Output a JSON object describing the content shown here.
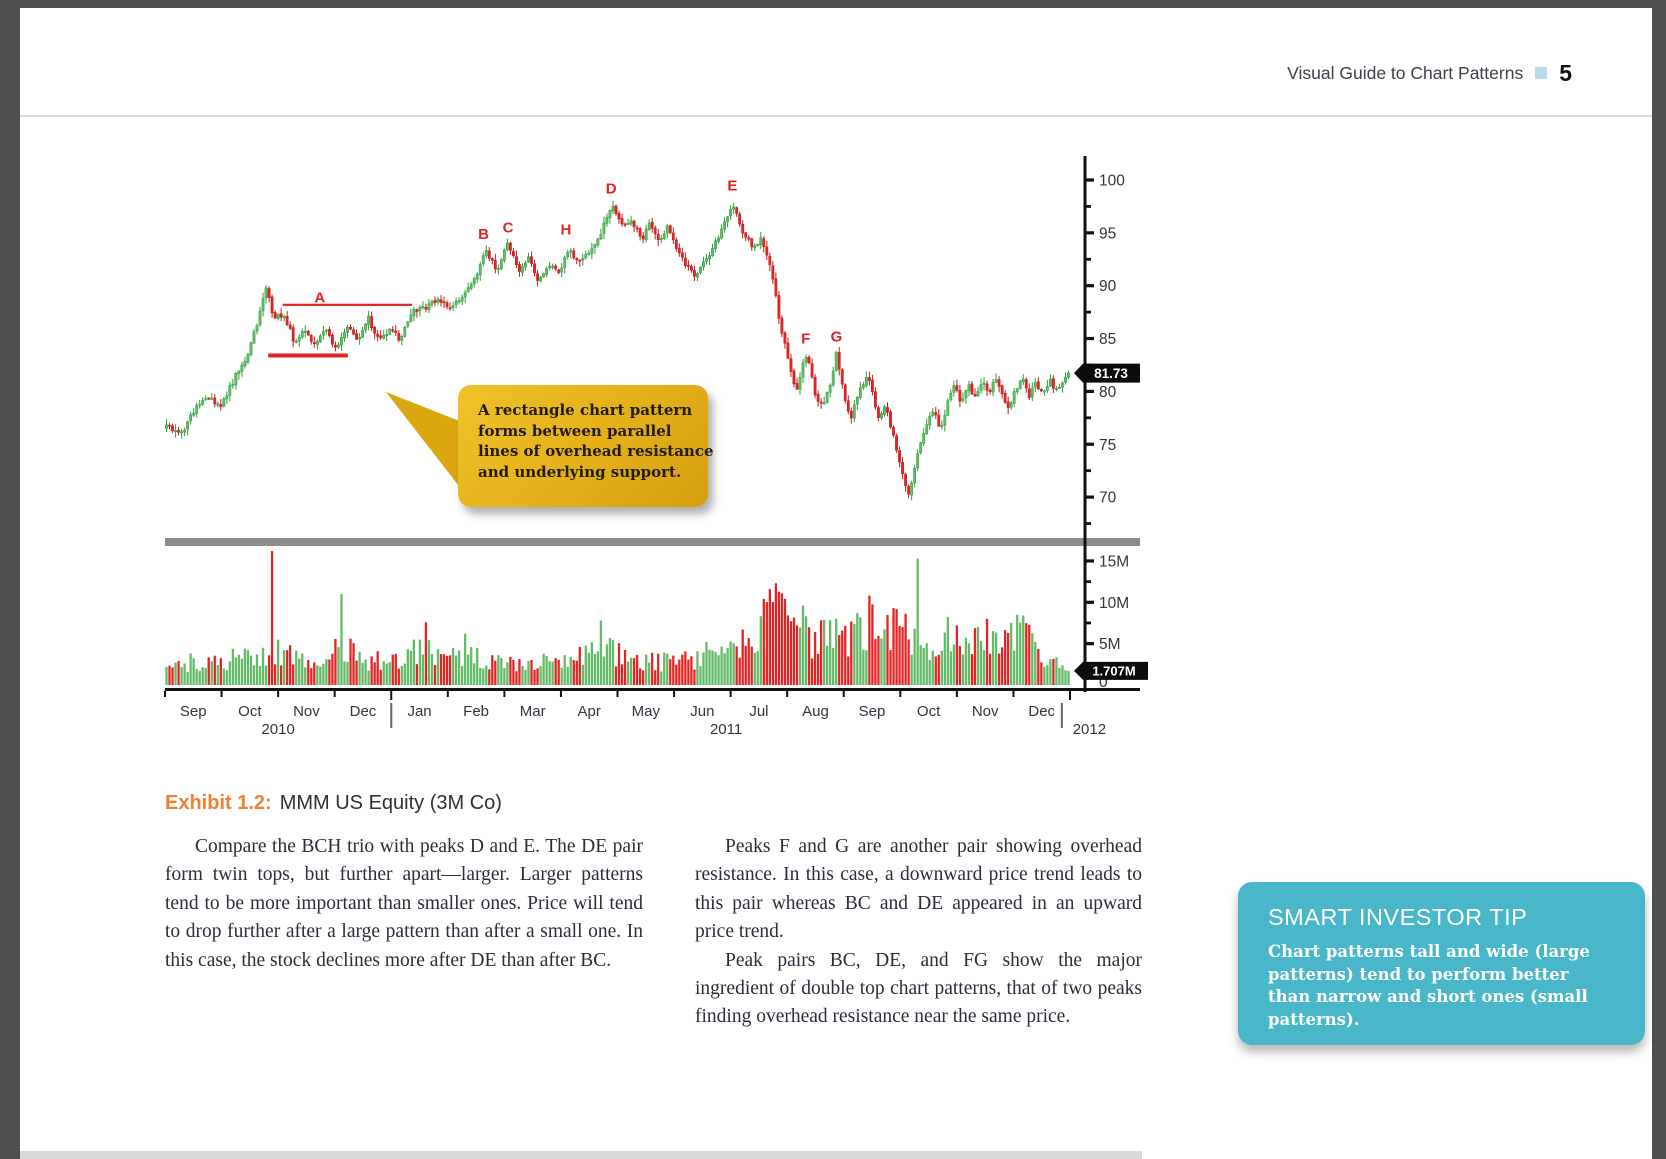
{
  "page": {
    "header": {
      "running_title": "Visual Guide to Chart Patterns",
      "page_number": "5",
      "marker_color": "#b8dde9"
    },
    "exhibit": {
      "label": "Exhibit 1.2:",
      "title": "MMM US Equity (3M Co)",
      "label_color": "#f07f2e"
    },
    "callout": {
      "bg": "#e9b41f",
      "lines": [
        "A rectangle chart pattern",
        "forms between parallel",
        "lines of overhead resistance",
        "and underlying support."
      ]
    },
    "body": {
      "left_paragraphs": [
        "Compare the BCH trio with peaks D and E. The DE pair form twin tops, but further apart—larger. Larger patterns tend to be more important than smaller ones. Price will tend to drop further after a large pattern than after a small one. In this case, the stock declines more after DE than after BC."
      ],
      "right_paragraphs": [
        "Peaks F and G are another pair showing overhead resistance. In this case, a downward price trend leads to this pair whereas BC and DE appeared in an upward price trend.",
        "Peak pairs BC, DE, and FG show the major ingredient of double top chart patterns, that of two peaks finding overhead resistance near the same price."
      ]
    },
    "tip": {
      "bg": "#49b6c9",
      "title": "SMART INVESTOR TIP",
      "text": "Chart patterns tall and wide (large patterns) tend to perform better than narrow and short ones (small patterns)."
    }
  },
  "chart_data": {
    "type": "candlestick_with_volume",
    "symbol": "MMM US Equity (3M Co)",
    "colors": {
      "up": "#63bb67",
      "up_stroke": "#2f9e3e",
      "down": "#e12524",
      "down_stroke": "#c01f1f",
      "axis_label": "#34343f",
      "annotation": "#e02423"
    },
    "price_axis": {
      "ticks": [
        70,
        75,
        80,
        85,
        90,
        95,
        100
      ],
      "minor_ticks": [
        67.5,
        72.5,
        77.5,
        82.5,
        87.5,
        92.5,
        97.5
      ],
      "last_price": 81.73,
      "last_price_label": "81.73",
      "ylim": [
        67.5,
        101
      ]
    },
    "volume_axis": {
      "ticks": [
        {
          "v": 0,
          "label": "0"
        },
        {
          "v": 5,
          "label": "5M"
        },
        {
          "v": 10,
          "label": "10M"
        },
        {
          "v": 15,
          "label": "15M"
        }
      ],
      "minor_ticks": [
        2.5,
        7.5,
        12.5
      ],
      "last_volume": 1.707,
      "last_volume_label": "1.707M",
      "ylim_m": [
        0,
        17
      ]
    },
    "x_axis": {
      "months": [
        "Sep",
        "Oct",
        "Nov",
        "Dec",
        "Jan",
        "Feb",
        "Mar",
        "Apr",
        "May",
        "Jun",
        "Jul",
        "Aug",
        "Sep",
        "Oct",
        "Nov",
        "Dec"
      ],
      "years": [
        {
          "label": "2010",
          "t": 0.125,
          "align": "middle"
        },
        {
          "label": "2011",
          "t": 0.62,
          "align": "middle"
        },
        {
          "label": "2012",
          "t": 1.003,
          "align": "start"
        }
      ],
      "separators_t": [
        0.25,
        0.991
      ]
    },
    "annotations": [
      {
        "label": "A",
        "t": 0.171,
        "price": 88.9
      },
      {
        "label": "B",
        "t": 0.352,
        "price": 94.9
      },
      {
        "label": "C",
        "t": 0.379,
        "price": 95.5
      },
      {
        "label": "H",
        "t": 0.443,
        "price": 95.3
      },
      {
        "label": "D",
        "t": 0.493,
        "price": 99.2
      },
      {
        "label": "E",
        "t": 0.627,
        "price": 99.5
      },
      {
        "label": "F",
        "t": 0.708,
        "price": 85.0
      },
      {
        "label": "G",
        "t": 0.742,
        "price": 85.2
      }
    ],
    "rectangle_pattern": {
      "resistance": {
        "t1": 0.13,
        "t2": 0.273,
        "price": 88.2
      },
      "support": {
        "t1": 0.114,
        "t2": 0.202,
        "price": 83.4
      }
    },
    "price_path": [
      [
        0,
        77
      ],
      [
        0.015,
        75.8
      ],
      [
        0.03,
        78.2
      ],
      [
        0.045,
        79.6
      ],
      [
        0.06,
        78.6
      ],
      [
        0.075,
        81.2
      ],
      [
        0.09,
        83.6
      ],
      [
        0.1,
        86.2
      ],
      [
        0.11,
        89.8
      ],
      [
        0.12,
        86.8
      ],
      [
        0.13,
        87.4
      ],
      [
        0.142,
        84.6
      ],
      [
        0.153,
        86.1
      ],
      [
        0.164,
        84.4
      ],
      [
        0.176,
        85.9
      ],
      [
        0.188,
        84.1
      ],
      [
        0.2,
        86.3
      ],
      [
        0.212,
        84.5
      ],
      [
        0.224,
        86.9
      ],
      [
        0.236,
        84.7
      ],
      [
        0.248,
        86.1
      ],
      [
        0.259,
        84.9
      ],
      [
        0.272,
        87.5
      ],
      [
        0.286,
        87.9
      ],
      [
        0.3,
        88.7
      ],
      [
        0.314,
        87.7
      ],
      [
        0.33,
        89.1
      ],
      [
        0.345,
        91.1
      ],
      [
        0.354,
        93.5
      ],
      [
        0.366,
        91.3
      ],
      [
        0.379,
        94.1
      ],
      [
        0.391,
        91.4
      ],
      [
        0.402,
        92.6
      ],
      [
        0.413,
        90.4
      ],
      [
        0.425,
        92.1
      ],
      [
        0.436,
        91.1
      ],
      [
        0.445,
        93.4
      ],
      [
        0.456,
        92.3
      ],
      [
        0.468,
        93.3
      ],
      [
        0.481,
        94.9
      ],
      [
        0.494,
        97.9
      ],
      [
        0.506,
        95.4
      ],
      [
        0.516,
        96.3
      ],
      [
        0.526,
        94.3
      ],
      [
        0.536,
        95.9
      ],
      [
        0.546,
        94.1
      ],
      [
        0.556,
        95.6
      ],
      [
        0.566,
        93.3
      ],
      [
        0.576,
        91.9
      ],
      [
        0.586,
        90.7
      ],
      [
        0.596,
        92.1
      ],
      [
        0.607,
        93.9
      ],
      [
        0.618,
        95.7
      ],
      [
        0.628,
        97.5
      ],
      [
        0.639,
        95.1
      ],
      [
        0.65,
        93.6
      ],
      [
        0.66,
        94.6
      ],
      [
        0.67,
        91.6
      ],
      [
        0.68,
        86.6
      ],
      [
        0.69,
        82.6
      ],
      [
        0.698,
        79.6
      ],
      [
        0.705,
        82.4
      ],
      [
        0.711,
        83.6
      ],
      [
        0.719,
        79.4
      ],
      [
        0.728,
        78.6
      ],
      [
        0.736,
        80.6
      ],
      [
        0.743,
        83.7
      ],
      [
        0.751,
        79.6
      ],
      [
        0.759,
        77.3
      ],
      [
        0.768,
        80.3
      ],
      [
        0.778,
        81.6
      ],
      [
        0.788,
        77.6
      ],
      [
        0.797,
        78.7
      ],
      [
        0.806,
        75.6
      ],
      [
        0.814,
        73.1
      ],
      [
        0.822,
        69.9
      ],
      [
        0.831,
        73.6
      ],
      [
        0.841,
        76.6
      ],
      [
        0.85,
        78.3
      ],
      [
        0.858,
        76.1
      ],
      [
        0.866,
        78.9
      ],
      [
        0.873,
        80.4
      ],
      [
        0.881,
        79.1
      ],
      [
        0.889,
        80.9
      ],
      [
        0.896,
        79.3
      ],
      [
        0.904,
        81
      ],
      [
        0.911,
        79.6
      ],
      [
        0.919,
        81.3
      ],
      [
        0.926,
        79.9
      ],
      [
        0.933,
        78.4
      ],
      [
        0.941,
        80.1
      ],
      [
        0.949,
        81.4
      ],
      [
        0.956,
        79.5
      ],
      [
        0.963,
        80.9
      ],
      [
        0.971,
        79.6
      ],
      [
        0.979,
        81
      ],
      [
        0.987,
        80.1
      ],
      [
        0.994,
        81.1
      ],
      [
        1,
        81.73
      ]
    ],
    "volume_path_m": [
      [
        0,
        2.6
      ],
      [
        0.05,
        3
      ],
      [
        0.1,
        3.4
      ],
      [
        0.13,
        4.2
      ],
      [
        0.16,
        3.4
      ],
      [
        0.19,
        5
      ],
      [
        0.22,
        3.2
      ],
      [
        0.25,
        2.8
      ],
      [
        0.28,
        4.4
      ],
      [
        0.31,
        3.2
      ],
      [
        0.34,
        3.4
      ],
      [
        0.37,
        2.6
      ],
      [
        0.4,
        3
      ],
      [
        0.43,
        2.8
      ],
      [
        0.46,
        3.6
      ],
      [
        0.49,
        4.4
      ],
      [
        0.52,
        3.2
      ],
      [
        0.55,
        2.8
      ],
      [
        0.58,
        3
      ],
      [
        0.61,
        3.4
      ],
      [
        0.63,
        4.6
      ],
      [
        0.645,
        5.4
      ],
      [
        0.66,
        7.5
      ],
      [
        0.675,
        9
      ],
      [
        0.69,
        7
      ],
      [
        0.705,
        6.2
      ],
      [
        0.72,
        5.4
      ],
      [
        0.735,
        6.6
      ],
      [
        0.75,
        5.2
      ],
      [
        0.765,
        6.8
      ],
      [
        0.78,
        7.4
      ],
      [
        0.8,
        6
      ],
      [
        0.815,
        7
      ],
      [
        0.83,
        6.2
      ],
      [
        0.845,
        5
      ],
      [
        0.86,
        6.4
      ],
      [
        0.875,
        5.4
      ],
      [
        0.89,
        4.6
      ],
      [
        0.905,
        6.2
      ],
      [
        0.92,
        4.8
      ],
      [
        0.935,
        5.6
      ],
      [
        0.95,
        6.6
      ],
      [
        0.965,
        4.2
      ],
      [
        0.98,
        3
      ],
      [
        0.99,
        2.2
      ],
      [
        1,
        1.707
      ]
    ],
    "volume_spikes_m": [
      [
        0.118,
        16.2
      ],
      [
        0.193,
        11
      ],
      [
        0.288,
        7.6
      ],
      [
        0.33,
        6.2
      ],
      [
        0.48,
        7.8
      ],
      [
        0.6,
        5.2
      ],
      [
        0.668,
        11.6
      ],
      [
        0.676,
        12.3
      ],
      [
        0.705,
        9.6
      ],
      [
        0.78,
        10.8
      ],
      [
        0.807,
        9.3
      ],
      [
        0.832,
        15.3
      ],
      [
        0.91,
        8
      ],
      [
        0.95,
        8.4
      ]
    ]
  }
}
